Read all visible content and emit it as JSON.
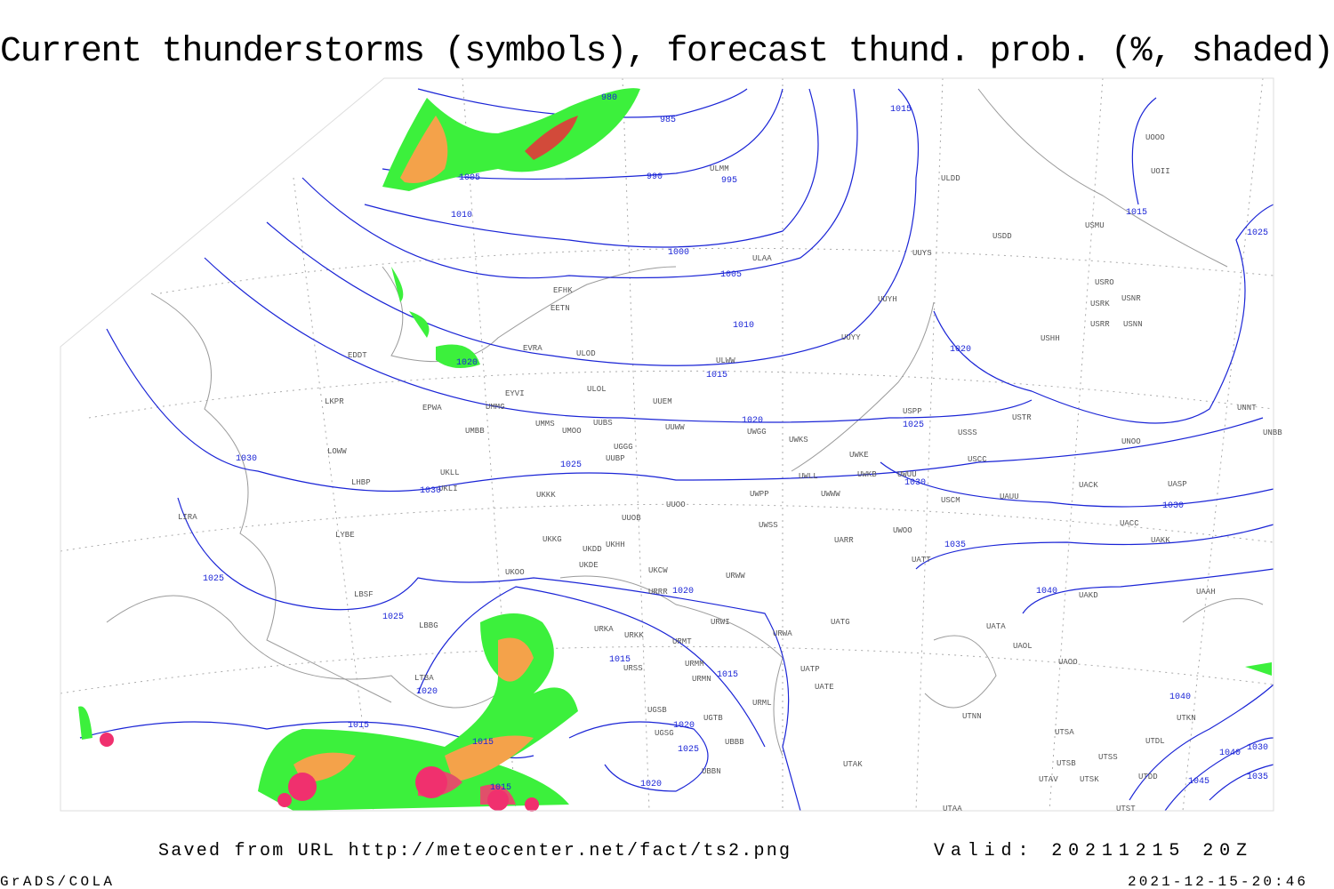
{
  "title": "Current thunderstorms (symbols), forecast thund. prob. (%, shaded)",
  "saved_from": "Saved from URL http://meteocenter.net/fact/ts2.png",
  "valid": "Valid: 20211215 20Z",
  "software": "GrADS/COLA",
  "timestamp": "2021-12-15-20:46",
  "isobar_labels": [
    980,
    985,
    990,
    995,
    1000,
    1005,
    1010,
    1015,
    1020,
    1025,
    1030,
    1035,
    1040,
    1030,
    1025,
    1015,
    1015,
    1020,
    1005,
    1010,
    1020,
    1025,
    1030,
    1030,
    1025,
    1025,
    1020,
    1015,
    1015,
    1020,
    1015,
    1015,
    1020,
    1025,
    1020,
    1015,
    1040,
    1030,
    1040,
    1045,
    1035
  ],
  "stations": [
    "ULMM",
    "ULDD",
    "UUYS",
    "ULAA",
    "USDD",
    "USMU",
    "USRO",
    "USRK",
    "USNR",
    "USRR",
    "USNN",
    "USHH",
    "UOOO",
    "UOII",
    "EFHK",
    "EETN",
    "EVRA",
    "ULOD",
    "ULOL",
    "EYVI",
    "UMMG",
    "EPWA",
    "LKPR",
    "EDDT",
    "UMBB",
    "UMMS",
    "UMOO",
    "UUBS",
    "UUEM",
    "UUWW",
    "UWGG",
    "UWKS",
    "UUYH",
    "UUYY",
    "ULWW",
    "USTR",
    "USSS",
    "UNOO",
    "UNNT",
    "UNBB",
    "USPP",
    "UWKE",
    "UWKB",
    "UWLL",
    "UWUU",
    "USCC",
    "USCM",
    "UAUU",
    "UACK",
    "UASP",
    "UACC",
    "UAKK",
    "UAKD",
    "UAAH",
    "UATA",
    "UAOL",
    "UAOO",
    "UATG",
    "UWPP",
    "UWWW",
    "UWSS",
    "UARR",
    "UWOO",
    "UATT",
    "URWA",
    "URWW",
    "URWI",
    "UATP",
    "UATE",
    "URML",
    "UTAK",
    "UTAA",
    "UTNN",
    "UTSA",
    "UTSB",
    "UTAV",
    "UTSS",
    "UTSK",
    "UTDD",
    "UTST",
    "UTDL",
    "UTKN",
    "UUOO",
    "UUOB",
    "UKHH",
    "UKKG",
    "UKDD",
    "UKDE",
    "UKOO",
    "UKKK",
    "UKLL",
    "UKLI",
    "LOWW",
    "LHBP",
    "LIRA",
    "LYBE",
    "LBSF",
    "LBBG",
    "LTBA",
    "UKCW",
    "URRR",
    "URKA",
    "URKK",
    "URMT",
    "URMM",
    "URMN",
    "URSS",
    "UGSB",
    "UGTB",
    "UGSG",
    "UBBB",
    "UBBN",
    "UUBP",
    "UGGG"
  ]
}
